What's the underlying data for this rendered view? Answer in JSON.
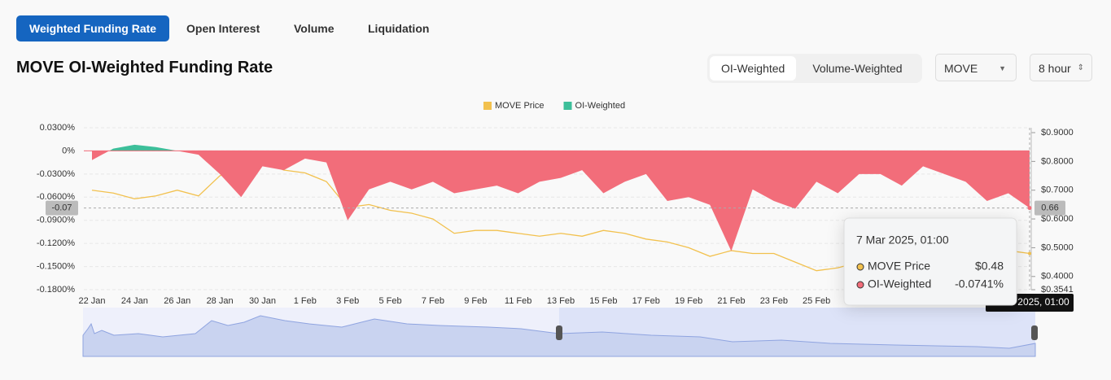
{
  "tabs": [
    "Weighted Funding Rate",
    "Open Interest",
    "Volume",
    "Liquidation"
  ],
  "title": "MOVE OI-Weighted Funding Rate",
  "weighting": [
    "OI-Weighted",
    "Volume-Weighted"
  ],
  "symbol": "MOVE",
  "interval": "8 hour",
  "chart_data": {
    "type": "line",
    "categories": [
      "22 Jan",
      null,
      "24 Jan",
      null,
      "26 Jan",
      null,
      "28 Jan",
      null,
      "30 Jan",
      null,
      "1 Feb",
      null,
      "3 Feb",
      null,
      "5 Feb",
      null,
      "7 Feb",
      null,
      "9 Feb",
      null,
      "11 Feb",
      null,
      "13 Feb",
      null,
      "15 Feb",
      null,
      "17 Feb",
      null,
      "19 Feb",
      null,
      "21 Feb",
      null,
      "23 Feb",
      null,
      "25 Feb",
      null,
      null,
      null,
      null,
      null,
      null,
      null,
      null,
      null,
      null
    ],
    "series": [
      {
        "name": "MOVE Price",
        "color": "#f2c14e",
        "axis": "y2",
        "values": [
          0.7,
          0.69,
          0.67,
          0.68,
          0.7,
          0.68,
          0.75,
          0.78,
          0.8,
          0.77,
          0.76,
          0.73,
          0.64,
          0.65,
          0.63,
          0.62,
          0.6,
          0.55,
          0.56,
          0.56,
          0.55,
          0.54,
          0.55,
          0.54,
          0.56,
          0.55,
          0.53,
          0.52,
          0.5,
          0.47,
          0.49,
          0.48,
          0.48,
          0.45,
          0.42,
          0.43,
          0.45,
          0.46,
          0.45,
          0.46,
          0.47,
          0.48,
          0.47,
          0.49,
          0.48
        ]
      },
      {
        "name": "OI-Weighted",
        "color": "#3dbf9a",
        "negative_color": "#f26d7a",
        "values": [
          -0.012,
          0.003,
          0.008,
          0.005,
          0.0,
          -0.005,
          -0.03,
          -0.06,
          -0.02,
          -0.025,
          -0.01,
          -0.015,
          -0.09,
          -0.05,
          -0.04,
          -0.05,
          -0.04,
          -0.055,
          -0.05,
          -0.045,
          -0.055,
          -0.04,
          -0.035,
          -0.025,
          -0.055,
          -0.04,
          -0.03,
          -0.065,
          -0.06,
          -0.07,
          -0.13,
          -0.05,
          -0.065,
          -0.075,
          -0.04,
          -0.055,
          -0.03,
          -0.03,
          -0.045,
          -0.02,
          -0.03,
          -0.04,
          -0.065,
          -0.055,
          -0.0741
        ]
      }
    ],
    "ylim": [
      -0.18,
      0.03
    ],
    "yticks": [
      {
        "value": 0.03,
        "label": "0.0300%"
      },
      {
        "value": 0,
        "label": "0%"
      },
      {
        "value": -0.03,
        "label": "-0.0300%"
      },
      {
        "value": -0.06,
        "label": "-0.0600%"
      },
      {
        "value": -0.09,
        "label": "-0.0900%"
      },
      {
        "value": -0.12,
        "label": "-0.1200%"
      },
      {
        "value": -0.15,
        "label": "-0.1500%"
      },
      {
        "value": -0.18,
        "label": "-0.1800%"
      }
    ],
    "y2lim": [
      0.3541,
      0.917
    ],
    "y2ticks": [
      {
        "value": 0.9,
        "label": "$0.9000"
      },
      {
        "value": 0.8,
        "label": "$0.8000"
      },
      {
        "value": 0.7,
        "label": "$0.7000"
      },
      {
        "value": 0.6,
        "label": "$0.6000"
      },
      {
        "value": 0.5,
        "label": "$0.5000"
      },
      {
        "value": 0.4,
        "label": "$0.4000"
      },
      {
        "value": 0.3541,
        "label": "$0.3541"
      }
    ],
    "grid": true,
    "legend": "top",
    "crosshair": {
      "y_label": "-0.07",
      "y2_label": "0.66"
    },
    "tooltip": {
      "title": "7 Mar 2025, 01:00",
      "rows": [
        {
          "name": "MOVE Price",
          "value": "$0.48"
        },
        {
          "name": "OI-Weighted",
          "value": "-0.0741%"
        }
      ]
    }
  }
}
